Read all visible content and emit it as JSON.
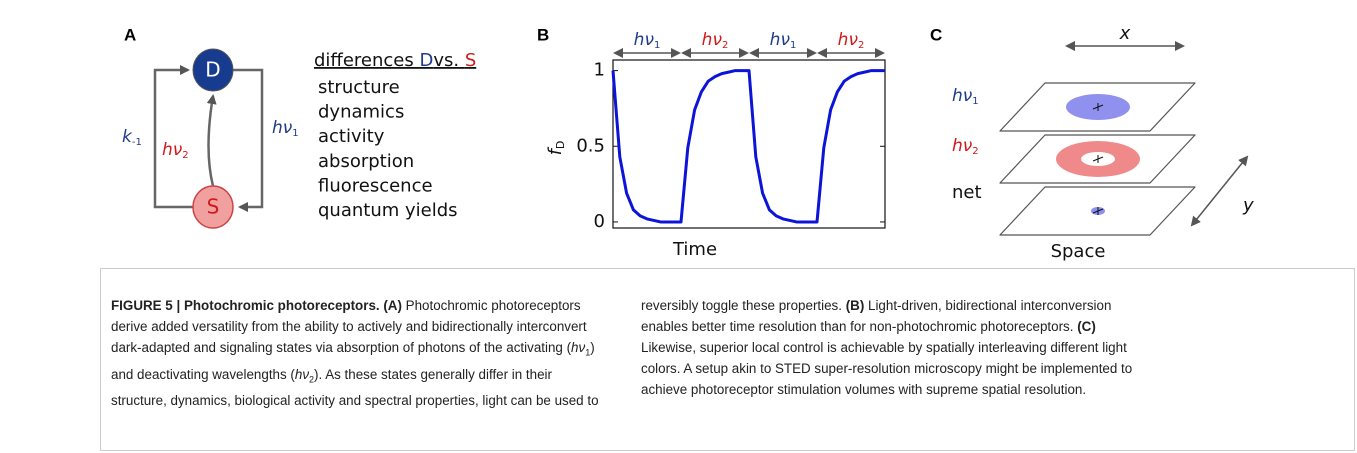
{
  "panel_A": {
    "letter": "A",
    "states": {
      "dark": "D",
      "signaling": "S"
    },
    "arrows": {
      "thermal": {
        "main": "k",
        "sub": "-1"
      },
      "deactivating": {
        "main": "hν",
        "sub": "2"
      },
      "activating": {
        "main": "hν",
        "sub": "1"
      }
    },
    "heading": {
      "prefix": "differences ",
      "dark": "D",
      "mid": "vs. ",
      "signaling": "S"
    },
    "items": [
      "structure",
      "dynamics",
      "activity",
      "absorption",
      "fluorescence",
      "quantum yields"
    ]
  },
  "chart_data": {
    "type": "line",
    "panel_letter": "B",
    "x_label": "Time",
    "y_label": {
      "main": "f",
      "sub": "D"
    },
    "light_phases": [
      {
        "main": "hν",
        "sub": "1"
      },
      {
        "main": "hν",
        "sub": "2"
      },
      {
        "main": "hν",
        "sub": "1"
      },
      {
        "main": "hν",
        "sub": "2"
      }
    ],
    "x": [
      0,
      0.1,
      0.2,
      0.3,
      0.4,
      0.5,
      0.6,
      0.7,
      0.8,
      0.9,
      1,
      1.1,
      1.2,
      1.3,
      1.4,
      1.5,
      1.6,
      1.7,
      1.8,
      1.9,
      2,
      2.1,
      2.2,
      2.3,
      2.4,
      2.5,
      2.6,
      2.7,
      2.8,
      2.9,
      3,
      3.1,
      3.2,
      3.3,
      3.4,
      3.5,
      3.6,
      3.7,
      3.8,
      3.9,
      4
    ],
    "values": [
      1,
      0.43,
      0.19,
      0.08,
      0.04,
      0.02,
      0.01,
      0,
      0,
      0,
      0,
      0.49,
      0.74,
      0.86,
      0.93,
      0.96,
      0.98,
      0.99,
      1,
      1,
      1,
      0.43,
      0.19,
      0.08,
      0.04,
      0.02,
      0.01,
      0,
      0,
      0,
      0,
      0.49,
      0.74,
      0.86,
      0.93,
      0.96,
      0.98,
      0.99,
      1,
      1,
      1
    ],
    "color": "#0c14d8",
    "xlim": [
      0,
      4
    ],
    "ylim": [
      -0.04,
      1.07
    ],
    "yticks": [
      0,
      0.5,
      1
    ]
  },
  "panel_C": {
    "letter": "C",
    "x_label": "x",
    "y_label": "y",
    "axis_label": "Space",
    "planes": [
      {
        "main": "hν",
        "sub": "1"
      },
      {
        "main": "hν",
        "sub": "2"
      },
      {
        "main": "net"
      }
    ]
  },
  "caption": [
    "FIGURE 5 | Photochromic photoreceptors. ",
    "(A)",
    " Photochromic photoreceptors derive added versatility from the ability to actively and bidirectionally interconvert dark-adapted and signaling states via absorption of photons of the activating (",
    "hν",
    "1",
    ") and deactivating wavelengths (",
    "hν",
    "2",
    "). As these states generally differ in their structure, dynamics, biological activity and spectral properties, light can be used to reversibly toggle these properties. ",
    "(B)",
    " Light-driven, bidirectional interconversion enables better time resolution than for non-photochromic photoreceptors. ",
    "(C)",
    " Likewise, superior local control is achievable by spatially interleaving different light colors. A setup akin to STED super-resolution microscopy might be implemented to achieve photoreceptor stimulation volumes with supreme spatial resolution."
  ]
}
